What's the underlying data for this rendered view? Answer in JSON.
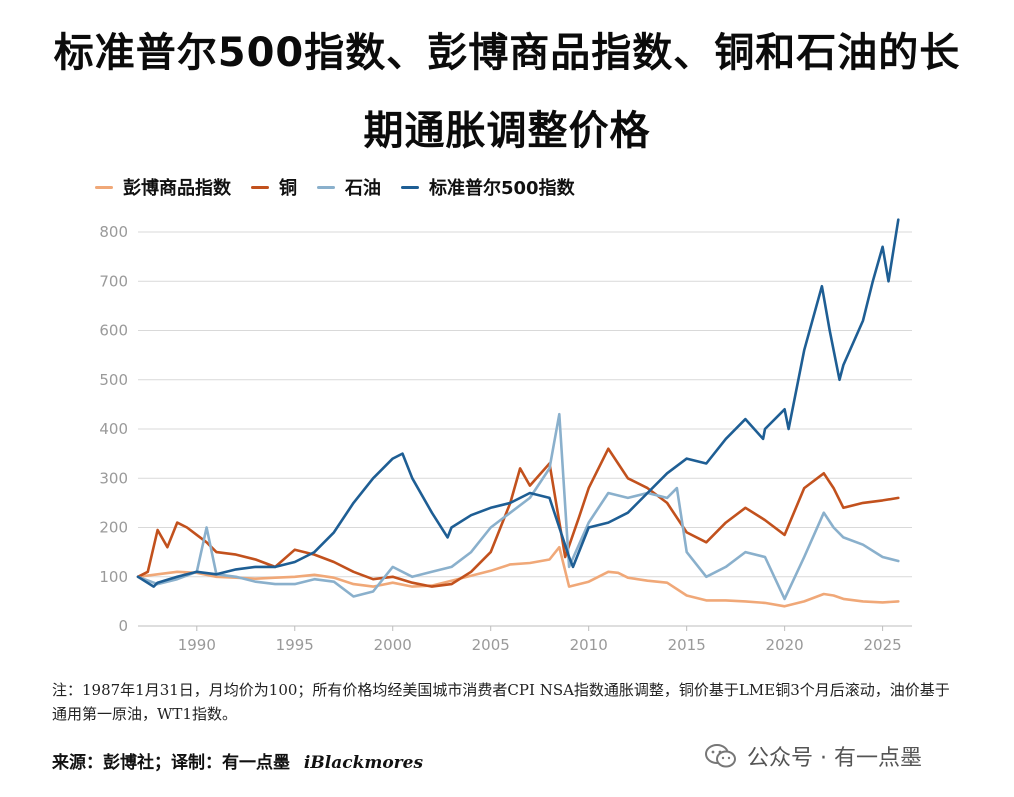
{
  "title_line1": "标准普尔500指数、彭博商品指数、铜和石油的长",
  "title_line2": "期通胀调整价格",
  "footnote": "注：1987年1月31日，月均价为100；所有价格均经美国城市消费者CPI NSA指数通胀调整，铜价基于LME铜3个月后滚动，油价基于通用第一原油，WT1指数。",
  "source": {
    "label": "来源：彭博社；译制：有一点墨",
    "brand": "iBlackmores"
  },
  "watermark": "公众号 · 有一点墨",
  "colors": {
    "bcom": "#f0a878",
    "copper": "#c2511d",
    "oil": "#8ab0cc",
    "spx": "#1e5e94",
    "grid": "#d9d9d9"
  },
  "chart_data": {
    "type": "line",
    "title": "标准普尔500指数、彭博商品指数、铜和石油的长期通胀调整价格",
    "xlabel": "",
    "ylabel": "",
    "xlim": [
      1987,
      2026.5
    ],
    "ylim": [
      0,
      800
    ],
    "x_ticks": [
      1990,
      1995,
      2000,
      2005,
      2010,
      2015,
      2020,
      2025
    ],
    "y_ticks": [
      0,
      100,
      200,
      300,
      400,
      500,
      600,
      700,
      800
    ],
    "grid": "horizontal",
    "legend_position": "top-left",
    "series": [
      {
        "name": "彭博商品指数",
        "color": "#f0a878",
        "points": [
          [
            1987.0,
            100
          ],
          [
            1988.0,
            105
          ],
          [
            1989.0,
            110
          ],
          [
            1990.0,
            108
          ],
          [
            1991.0,
            100
          ],
          [
            1992.0,
            98
          ],
          [
            1993.0,
            96
          ],
          [
            1994.0,
            98
          ],
          [
            1995.0,
            100
          ],
          [
            1996.0,
            104
          ],
          [
            1997.0,
            98
          ],
          [
            1998.0,
            85
          ],
          [
            1999.0,
            80
          ],
          [
            2000.0,
            88
          ],
          [
            2001.0,
            80
          ],
          [
            2002.0,
            82
          ],
          [
            2003.0,
            92
          ],
          [
            2004.0,
            102
          ],
          [
            2005.0,
            112
          ],
          [
            2006.0,
            125
          ],
          [
            2007.0,
            128
          ],
          [
            2008.0,
            135
          ],
          [
            2008.5,
            160
          ],
          [
            2009.0,
            80
          ],
          [
            2010.0,
            90
          ],
          [
            2011.0,
            110
          ],
          [
            2011.5,
            108
          ],
          [
            2012.0,
            98
          ],
          [
            2013.0,
            92
          ],
          [
            2014.0,
            88
          ],
          [
            2015.0,
            62
          ],
          [
            2016.0,
            52
          ],
          [
            2017.0,
            52
          ],
          [
            2018.0,
            50
          ],
          [
            2019.0,
            47
          ],
          [
            2020.0,
            40
          ],
          [
            2021.0,
            50
          ],
          [
            2022.0,
            65
          ],
          [
            2022.5,
            62
          ],
          [
            2023.0,
            55
          ],
          [
            2024.0,
            50
          ],
          [
            2025.0,
            48
          ],
          [
            2025.8,
            50
          ]
        ]
      },
      {
        "name": "铜",
        "color": "#c2511d",
        "points": [
          [
            1987.0,
            100
          ],
          [
            1987.5,
            110
          ],
          [
            1988.0,
            195
          ],
          [
            1988.5,
            160
          ],
          [
            1989.0,
            210
          ],
          [
            1989.5,
            200
          ],
          [
            1990.0,
            185
          ],
          [
            1990.5,
            170
          ],
          [
            1991.0,
            150
          ],
          [
            1992.0,
            145
          ],
          [
            1993.0,
            135
          ],
          [
            1994.0,
            120
          ],
          [
            1995.0,
            155
          ],
          [
            1996.0,
            145
          ],
          [
            1997.0,
            130
          ],
          [
            1998.0,
            110
          ],
          [
            1999.0,
            95
          ],
          [
            2000.0,
            100
          ],
          [
            2001.0,
            88
          ],
          [
            2002.0,
            80
          ],
          [
            2003.0,
            85
          ],
          [
            2004.0,
            110
          ],
          [
            2005.0,
            150
          ],
          [
            2006.0,
            250
          ],
          [
            2006.5,
            320
          ],
          [
            2007.0,
            285
          ],
          [
            2008.0,
            330
          ],
          [
            2008.8,
            140
          ],
          [
            2009.5,
            220
          ],
          [
            2010.0,
            280
          ],
          [
            2011.0,
            360
          ],
          [
            2011.5,
            330
          ],
          [
            2012.0,
            300
          ],
          [
            2013.0,
            280
          ],
          [
            2014.0,
            250
          ],
          [
            2015.0,
            190
          ],
          [
            2016.0,
            170
          ],
          [
            2017.0,
            210
          ],
          [
            2018.0,
            240
          ],
          [
            2019.0,
            215
          ],
          [
            2020.0,
            185
          ],
          [
            2021.0,
            280
          ],
          [
            2022.0,
            310
          ],
          [
            2022.5,
            280
          ],
          [
            2023.0,
            240
          ],
          [
            2024.0,
            250
          ],
          [
            2025.0,
            255
          ],
          [
            2025.8,
            260
          ]
        ]
      },
      {
        "name": "石油",
        "color": "#8ab0cc",
        "points": [
          [
            1987.0,
            100
          ],
          [
            1988.0,
            85
          ],
          [
            1989.0,
            95
          ],
          [
            1990.0,
            110
          ],
          [
            1990.5,
            200
          ],
          [
            1991.0,
            105
          ],
          [
            1992.0,
            100
          ],
          [
            1993.0,
            90
          ],
          [
            1994.0,
            85
          ],
          [
            1995.0,
            85
          ],
          [
            1996.0,
            95
          ],
          [
            1997.0,
            90
          ],
          [
            1998.0,
            60
          ],
          [
            1999.0,
            70
          ],
          [
            2000.0,
            120
          ],
          [
            2001.0,
            100
          ],
          [
            2002.0,
            110
          ],
          [
            2003.0,
            120
          ],
          [
            2004.0,
            150
          ],
          [
            2005.0,
            200
          ],
          [
            2006.0,
            230
          ],
          [
            2007.0,
            260
          ],
          [
            2008.0,
            320
          ],
          [
            2008.5,
            430
          ],
          [
            2009.0,
            120
          ],
          [
            2010.0,
            210
          ],
          [
            2011.0,
            270
          ],
          [
            2012.0,
            260
          ],
          [
            2013.0,
            270
          ],
          [
            2014.0,
            260
          ],
          [
            2014.5,
            280
          ],
          [
            2015.0,
            150
          ],
          [
            2016.0,
            100
          ],
          [
            2017.0,
            120
          ],
          [
            2018.0,
            150
          ],
          [
            2019.0,
            140
          ],
          [
            2020.0,
            55
          ],
          [
            2021.0,
            140
          ],
          [
            2022.0,
            230
          ],
          [
            2022.5,
            200
          ],
          [
            2023.0,
            180
          ],
          [
            2024.0,
            165
          ],
          [
            2025.0,
            140
          ],
          [
            2025.8,
            132
          ]
        ]
      },
      {
        "name": "标准普尔500指数",
        "color": "#1e5e94",
        "points": [
          [
            1987.0,
            100
          ],
          [
            1987.8,
            80
          ],
          [
            1988.0,
            88
          ],
          [
            1989.0,
            100
          ],
          [
            1990.0,
            110
          ],
          [
            1991.0,
            105
          ],
          [
            1992.0,
            115
          ],
          [
            1993.0,
            120
          ],
          [
            1994.0,
            120
          ],
          [
            1995.0,
            130
          ],
          [
            1996.0,
            150
          ],
          [
            1997.0,
            190
          ],
          [
            1998.0,
            250
          ],
          [
            1999.0,
            300
          ],
          [
            2000.0,
            340
          ],
          [
            2000.5,
            350
          ],
          [
            2001.0,
            300
          ],
          [
            2002.0,
            230
          ],
          [
            2002.8,
            180
          ],
          [
            2003.0,
            200
          ],
          [
            2004.0,
            225
          ],
          [
            2005.0,
            240
          ],
          [
            2006.0,
            250
          ],
          [
            2007.0,
            270
          ],
          [
            2008.0,
            260
          ],
          [
            2009.0,
            140
          ],
          [
            2009.2,
            120
          ],
          [
            2010.0,
            200
          ],
          [
            2011.0,
            210
          ],
          [
            2012.0,
            230
          ],
          [
            2013.0,
            270
          ],
          [
            2014.0,
            310
          ],
          [
            2015.0,
            340
          ],
          [
            2016.0,
            330
          ],
          [
            2017.0,
            380
          ],
          [
            2018.0,
            420
          ],
          [
            2018.9,
            380
          ],
          [
            2019.0,
            400
          ],
          [
            2020.0,
            440
          ],
          [
            2020.2,
            400
          ],
          [
            2021.0,
            560
          ],
          [
            2021.9,
            690
          ],
          [
            2022.3,
            600
          ],
          [
            2022.8,
            500
          ],
          [
            2023.0,
            530
          ],
          [
            2024.0,
            620
          ],
          [
            2024.5,
            700
          ],
          [
            2025.0,
            770
          ],
          [
            2025.3,
            700
          ],
          [
            2025.8,
            825
          ]
        ]
      }
    ]
  }
}
